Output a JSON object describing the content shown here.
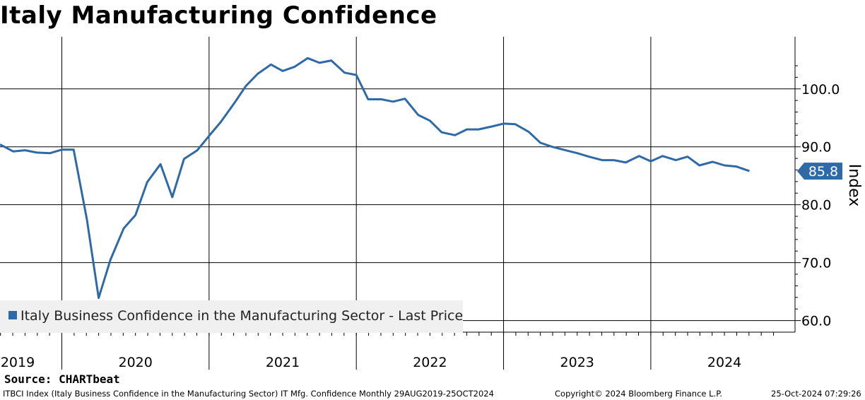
{
  "page": {
    "title": "Italy Manufacturing Confidence",
    "source": "Source: CHARTbeat",
    "footer_left": "ITBCI Index (Italy Business Confidence in the Manufacturing Sector) IT Mfg. Confidence  Monthly 29AUG2019-25OCT2024",
    "footer_mid": "Copyright© 2024 Bloomberg Finance L.P.",
    "footer_right": "25-Oct-2024 07:29:26"
  },
  "colors": {
    "line": "#2f6aa8",
    "grid": "#000000"
  },
  "chart_data": {
    "type": "line",
    "title": "Italy Manufacturing Confidence",
    "ylabel": "Index",
    "ylim": [
      58,
      109
    ],
    "yticks": [
      60,
      70,
      80,
      90,
      100
    ],
    "ytick_labels": [
      "60.0",
      "70.0",
      "80.0",
      "90.0",
      "100.0"
    ],
    "x_range": [
      2019.58,
      2024.85
    ],
    "year_ticks": [
      2020,
      2021,
      2022,
      2023,
      2024
    ],
    "year_labels": [
      {
        "x": 2019.7,
        "label": "2019"
      },
      {
        "x": 2020.5,
        "label": "2020"
      },
      {
        "x": 2021.5,
        "label": "2021"
      },
      {
        "x": 2022.5,
        "label": "2022"
      },
      {
        "x": 2023.5,
        "label": "2023"
      },
      {
        "x": 2024.5,
        "label": "2024"
      }
    ],
    "last_value_label": "85.8",
    "legend": "Italy Business Confidence in the Manufacturing Sector - Last Price",
    "series": [
      {
        "name": "Italy Business Confidence in the Manufacturing Sector - Last Price",
        "x": [
          2019.58,
          2019.67,
          2019.75,
          2019.83,
          2019.92,
          2020.0,
          2020.08,
          2020.17,
          2020.25,
          2020.33,
          2020.42,
          2020.5,
          2020.58,
          2020.67,
          2020.75,
          2020.83,
          2020.92,
          2021.0,
          2021.08,
          2021.17,
          2021.25,
          2021.33,
          2021.42,
          2021.5,
          2021.58,
          2021.67,
          2021.75,
          2021.83,
          2021.92,
          2022.0,
          2022.08,
          2022.17,
          2022.25,
          2022.33,
          2022.42,
          2022.5,
          2022.58,
          2022.67,
          2022.75,
          2022.83,
          2022.92,
          2023.0,
          2023.08,
          2023.17,
          2023.25,
          2023.33,
          2023.42,
          2023.5,
          2023.58,
          2023.67,
          2023.75,
          2023.83,
          2023.92,
          2024.0,
          2024.08,
          2024.17,
          2024.25,
          2024.33,
          2024.42,
          2024.5,
          2024.58,
          2024.67,
          2024.75
        ],
        "values": [
          90.4,
          89.2,
          89.4,
          89.0,
          88.9,
          89.5,
          89.5,
          77.5,
          63.9,
          70.5,
          75.9,
          78.2,
          83.9,
          87.0,
          81.3,
          87.9,
          89.4,
          91.9,
          94.3,
          97.5,
          100.5,
          102.6,
          104.2,
          103.1,
          103.8,
          105.3,
          104.5,
          104.9,
          102.8,
          102.4,
          98.2,
          98.2,
          97.8,
          98.3,
          95.5,
          94.5,
          92.5,
          92.0,
          93.0,
          93.0,
          93.5,
          94.0,
          93.9,
          92.6,
          90.7,
          90.0,
          89.4,
          88.9,
          88.3,
          87.7,
          87.7,
          87.3,
          88.4,
          87.5,
          88.4,
          87.7,
          88.3,
          86.8,
          87.4,
          86.8,
          86.6,
          85.8,
          null
        ]
      }
    ]
  }
}
